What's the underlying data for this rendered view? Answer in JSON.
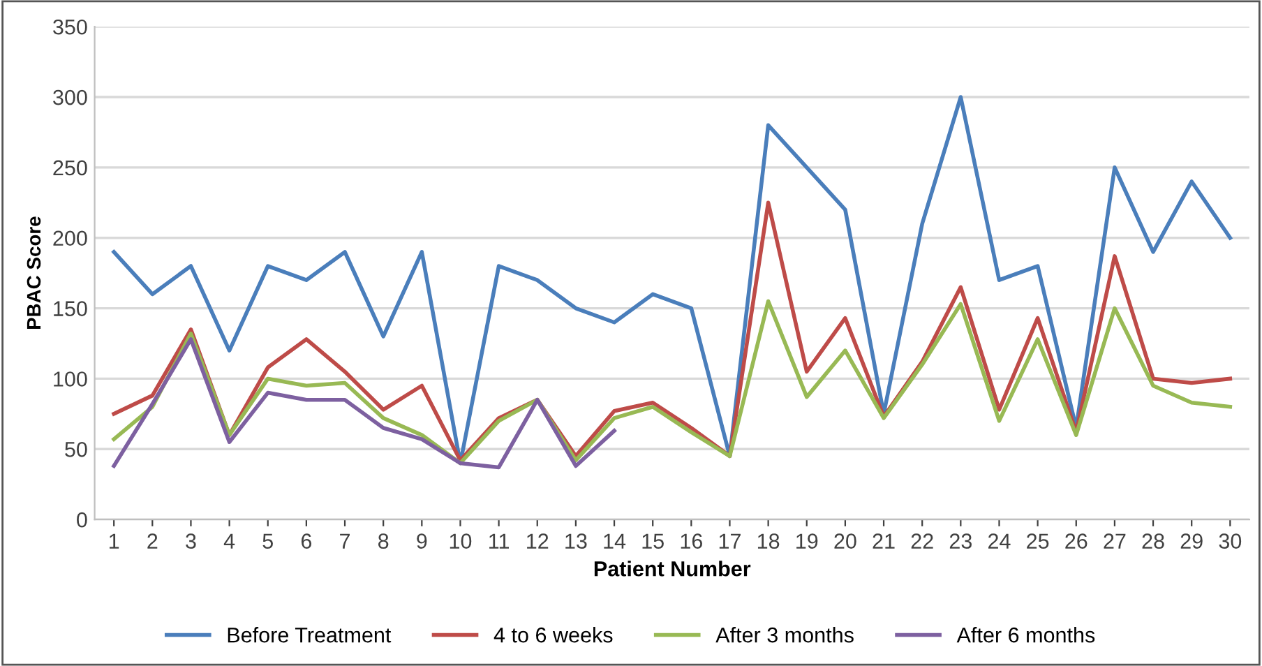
{
  "chart_data": {
    "type": "line",
    "xlabel": "Patient Number",
    "ylabel": "PBAC Score",
    "categories": [
      "1",
      "2",
      "3",
      "4",
      "5",
      "6",
      "7",
      "8",
      "9",
      "10",
      "11",
      "12",
      "13",
      "14",
      "15",
      "16",
      "17",
      "18",
      "19",
      "20",
      "21",
      "22",
      "23",
      "24",
      "25",
      "26",
      "27",
      "28",
      "29",
      "30"
    ],
    "series": [
      {
        "name": "Before Treatment",
        "color": "#4a7ebb",
        "values": [
          190,
          160,
          180,
          120,
          180,
          170,
          190,
          130,
          190,
          40,
          180,
          170,
          150,
          140,
          160,
          150,
          45,
          280,
          250,
          220,
          75,
          210,
          300,
          170,
          180,
          65,
          250,
          190,
          240,
          200
        ]
      },
      {
        "name": "4 to 6 weeks",
        "color": "#be4b48",
        "values": [
          75,
          88,
          135,
          60,
          108,
          128,
          105,
          78,
          95,
          42,
          72,
          85,
          45,
          77,
          83,
          65,
          45,
          225,
          105,
          143,
          73,
          112,
          165,
          78,
          143,
          62,
          187,
          100,
          97,
          100
        ]
      },
      {
        "name": "After 3 months",
        "color": "#98b954",
        "values": [
          57,
          80,
          132,
          60,
          100,
          95,
          97,
          72,
          60,
          40,
          70,
          85,
          42,
          72,
          80,
          62,
          45,
          155,
          87,
          120,
          72,
          110,
          153,
          70,
          128,
          60,
          150,
          95,
          83,
          80
        ]
      },
      {
        "name": "After 6 months",
        "color": "#7d60a0",
        "values": [
          38,
          82,
          128,
          55,
          90,
          85,
          85,
          65,
          57,
          40,
          37,
          85,
          38,
          63,
          null,
          null,
          null,
          null,
          null,
          null,
          null,
          null,
          null,
          null,
          null,
          null,
          null,
          null,
          null,
          null
        ]
      }
    ],
    "ylim": [
      0,
      350
    ],
    "yticks": [
      0,
      50,
      100,
      150,
      200,
      250,
      300,
      350
    ],
    "grid": "y",
    "legend": "bottom",
    "marker": "none",
    "line_style": "solid"
  }
}
